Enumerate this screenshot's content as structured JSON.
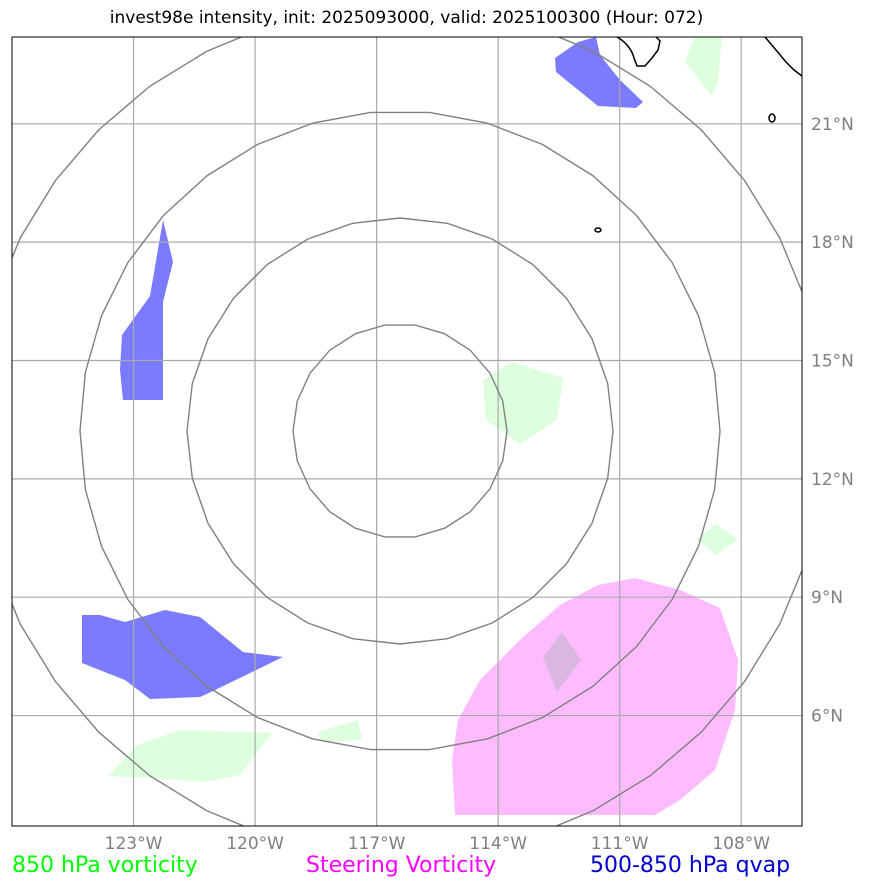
{
  "title": "invest98e intensity, init: 2025093000, valid: 2025100300 (Hour: 072)",
  "map": {
    "lon_range": [
      -126,
      -106.5
    ],
    "lat_range": [
      3.2,
      23.2
    ],
    "lon_ticks": [
      "123°W",
      "120°W",
      "117°W",
      "114°W",
      "111°W",
      "108°W"
    ],
    "lat_ticks": [
      "21°N",
      "18°N",
      "15°N",
      "12°N",
      "9°N",
      "6°N"
    ],
    "gridlines": true,
    "range_rings": 4,
    "colors": {
      "vorticity_850": "#ddffdd",
      "steering_vorticity": "#ffbbff",
      "qvap": "#7b7bff",
      "grid": "#aaaaaa",
      "rings": "#808080",
      "coastline": "#000000"
    }
  },
  "legend": {
    "vort850": "850 hPa vorticity",
    "steering": "Steering Vorticity",
    "qvap": "500-850 hPa qvap"
  }
}
